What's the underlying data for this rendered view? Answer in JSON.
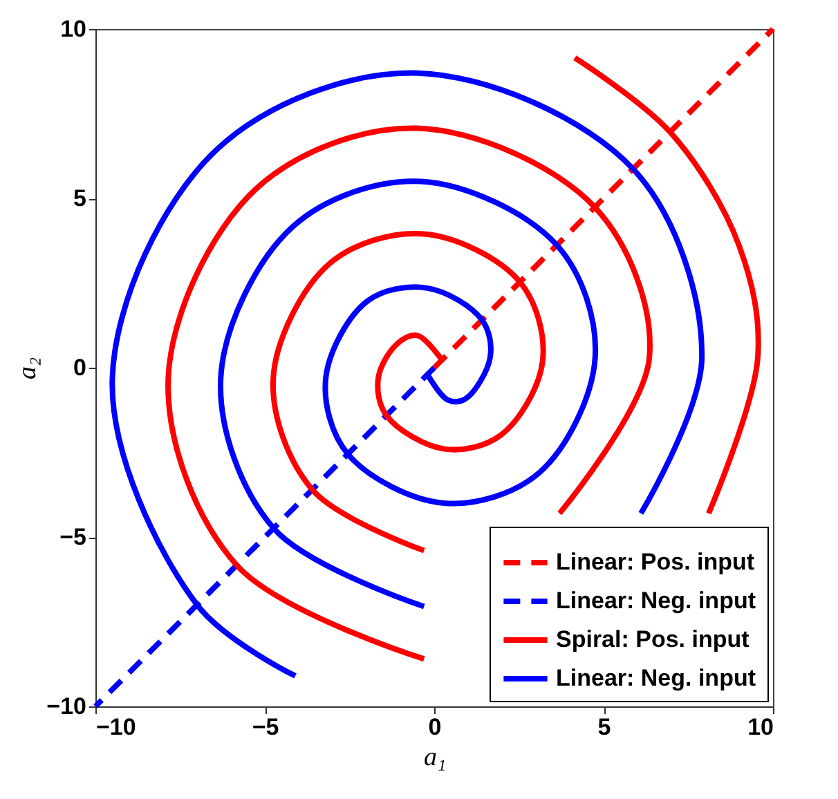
{
  "chart_data": {
    "type": "line",
    "xlabel": "a₁",
    "ylabel": "a₂",
    "xlim": [
      -10,
      10
    ],
    "ylim": [
      -10,
      10
    ],
    "xticks": [
      -10,
      -5,
      0,
      5,
      10
    ],
    "yticks": [
      -10,
      -5,
      0,
      5,
      10
    ],
    "legend": "bottom right",
    "series": [
      {
        "name": "Linear: Pos. input",
        "color": "#ff0000",
        "line_style": "dashed",
        "x": [
          0,
          10
        ],
        "values": [
          0,
          10
        ]
      },
      {
        "name": "Linear: Neg. input",
        "color": "#0000ff",
        "line_style": "dashed",
        "x": [
          0,
          -10
        ],
        "values": [
          0,
          -10
        ]
      },
      {
        "name": "Spiral: Pos. input",
        "color": "#ff0000",
        "line_style": "solid",
        "x": [
          0.25,
          -0.5,
          -1.1,
          -1.65,
          -1.41,
          0.3,
          1.98,
          3.2,
          2.53,
          -0.3,
          -3.08,
          -4.75,
          -3.6,
          -0.3,
          1.5,
          3.7,
          6.35,
          4.74,
          -0.5,
          -5.27,
          -7.85,
          -5.83,
          -0.3,
          4.0,
          8.1,
          9.55,
          9.0,
          6.97,
          4.15
        ],
        "values": [
          0.2,
          0.95,
          0.7,
          -0.3,
          -1.41,
          -2.4,
          -1.98,
          0.2,
          2.53,
          3.95,
          3.08,
          -0.3,
          -3.6,
          -5.4,
          null,
          -4.3,
          0.3,
          4.74,
          7.07,
          5.27,
          -0.3,
          -5.83,
          -8.6,
          null,
          -4.3,
          0.3,
          3.6,
          6.95,
          9.15
        ]
      },
      {
        "name": "Linear: Neg. input",
        "color": "#0000ff",
        "line_style": "solid",
        "x": [
          -0.2,
          0.4,
          0.92,
          1.65,
          1.41,
          -0.2,
          -1.97,
          -3.2,
          -2.55,
          0.3,
          3.1,
          4.75,
          3.62,
          -0.4,
          -4.17,
          -6.3,
          -4.74,
          -0.3,
          3.0,
          6.1,
          7.9,
          5.87,
          -0.5,
          -6.43,
          -9.5,
          -7.0,
          -4.1
        ],
        "values": [
          -0.2,
          -0.95,
          -0.92,
          0.3,
          1.41,
          2.35,
          1.97,
          -0.3,
          -2.55,
          -4.0,
          -3.1,
          0.3,
          3.62,
          5.5,
          4.17,
          -0.3,
          -4.74,
          -7.05,
          null,
          -4.3,
          0.3,
          5.87,
          8.7,
          6.43,
          -0.3,
          -7.0,
          -9.1
        ]
      }
    ]
  }
}
